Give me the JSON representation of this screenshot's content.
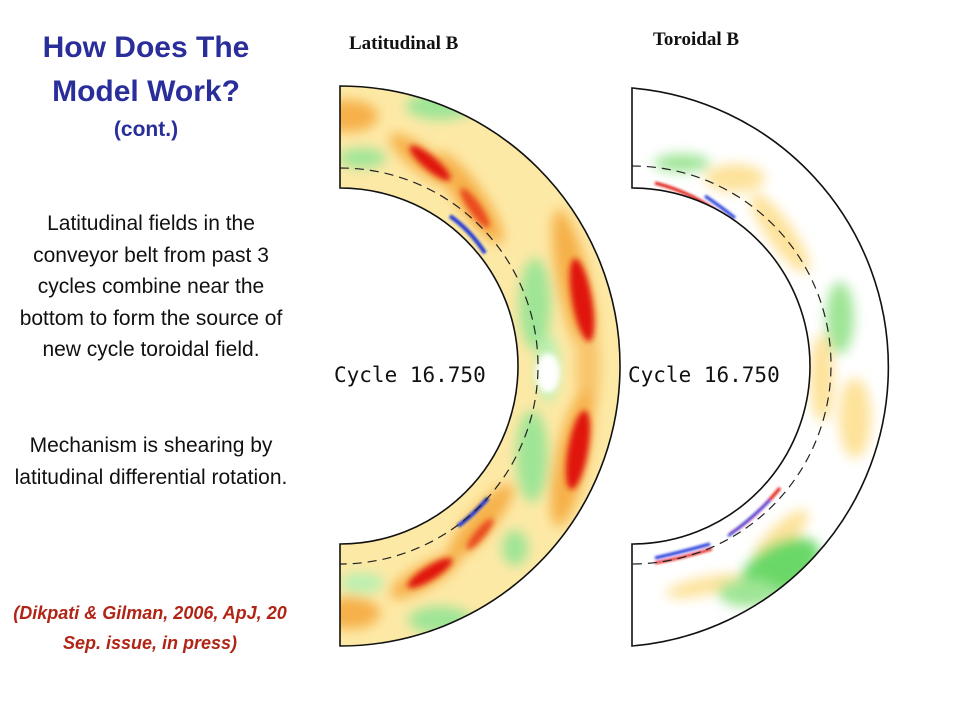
{
  "slide": {
    "title": "How Does The Model Work?",
    "subtitle": "(cont.)",
    "paragraph1": "Latitudinal fields in the conveyor belt from past 3 cycles combine near the bottom to form the source of new cycle toroidal field.",
    "paragraph2": "Mechanism is shearing by latitudinal differential rotation.",
    "citation": "(Dikpati & Gilman, 2006, ApJ, 20 Sep. issue, in press)"
  },
  "figure": {
    "panels": [
      {
        "title": "Latitudinal B",
        "cycle_label": "Cycle 16.750"
      },
      {
        "title": "Toroidal B",
        "cycle_label": "Cycle 16.750"
      }
    ]
  },
  "colors": {
    "title": "#2a2e9a",
    "citation": "#b02515",
    "positive_weak": "#fde9a6",
    "positive_mid": "#f6b04a",
    "positive_strong": "#e0190e",
    "negative_weak": "#b8f0b0",
    "negative_mid": "#6bd868",
    "negative_strong": "#1c34d8"
  }
}
